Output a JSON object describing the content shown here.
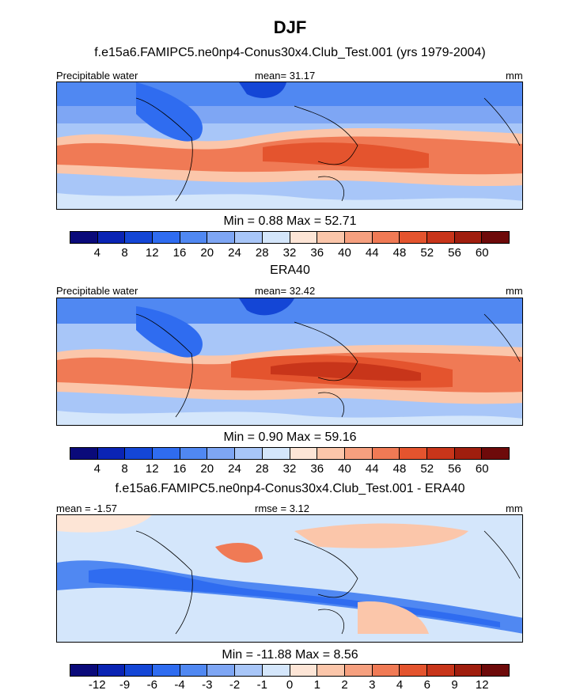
{
  "title": "DJF",
  "panels": [
    {
      "heading": "f.e15a6.FAMIPC5.ne0np4-Conus30x4.Club_Test.001 (yrs 1979-2004)",
      "left_label": "Precipitable water",
      "center_label": "mean=  31.17",
      "right_label": "mm",
      "minmax": "Min =   0.88 Max =  52.71",
      "levels": [
        "4",
        "8",
        "12",
        "16",
        "20",
        "24",
        "28",
        "32",
        "36",
        "40",
        "44",
        "48",
        "52",
        "56",
        "60"
      ]
    },
    {
      "heading": "ERA40",
      "left_label": "Precipitable water",
      "center_label": "mean=  32.42",
      "right_label": "mm",
      "minmax": "Min =   0.90 Max =  59.16",
      "levels": [
        "4",
        "8",
        "12",
        "16",
        "20",
        "24",
        "28",
        "32",
        "36",
        "40",
        "44",
        "48",
        "52",
        "56",
        "60"
      ]
    },
    {
      "heading": "f.e15a6.FAMIPC5.ne0np4-Conus30x4.Club_Test.001 - ERA40",
      "left_label": "mean =  -1.57",
      "center_label": "rmse =   3.12",
      "right_label": "mm",
      "minmax": "Min = -11.88 Max =   8.56",
      "levels": [
        "-12",
        "-9",
        "-6",
        "-4",
        "-3",
        "-2",
        "-1",
        "0",
        "1",
        "2",
        "3",
        "4",
        "6",
        "9",
        "12"
      ]
    }
  ],
  "colors": {
    "palette": [
      "#0a0a7a",
      "#0a24b4",
      "#1446d6",
      "#2f6cf0",
      "#5088f2",
      "#7ea6f4",
      "#a8c6f8",
      "#d4e6fb",
      "#fde5d6",
      "#fbc6aa",
      "#f6a07f",
      "#f07a55",
      "#e4542e",
      "#c8351a",
      "#a01e0e",
      "#6e0a0a"
    ]
  },
  "chart_data": [
    {
      "type": "heatmap",
      "title": "f.e15a6.FAMIPC5.ne0np4-Conus30x4.Club_Test.001 (yrs 1979-2004)",
      "variable": "Precipitable water",
      "units": "mm",
      "mean": 31.17,
      "min": 0.88,
      "max": 52.71,
      "contour_levels": [
        4,
        8,
        12,
        16,
        20,
        24,
        28,
        32,
        36,
        40,
        44,
        48,
        52,
        56,
        60
      ]
    },
    {
      "type": "heatmap",
      "title": "ERA40",
      "variable": "Precipitable water",
      "units": "mm",
      "mean": 32.42,
      "min": 0.9,
      "max": 59.16,
      "contour_levels": [
        4,
        8,
        12,
        16,
        20,
        24,
        28,
        32,
        36,
        40,
        44,
        48,
        52,
        56,
        60
      ]
    },
    {
      "type": "heatmap",
      "title": "f.e15a6.FAMIPC5.ne0np4-Conus30x4.Club_Test.001 - ERA40",
      "units": "mm",
      "mean": -1.57,
      "rmse": 3.12,
      "min": -11.88,
      "max": 8.56,
      "contour_levels": [
        -12,
        -9,
        -6,
        -4,
        -3,
        -2,
        -1,
        0,
        1,
        2,
        3,
        4,
        6,
        9,
        12
      ]
    }
  ]
}
